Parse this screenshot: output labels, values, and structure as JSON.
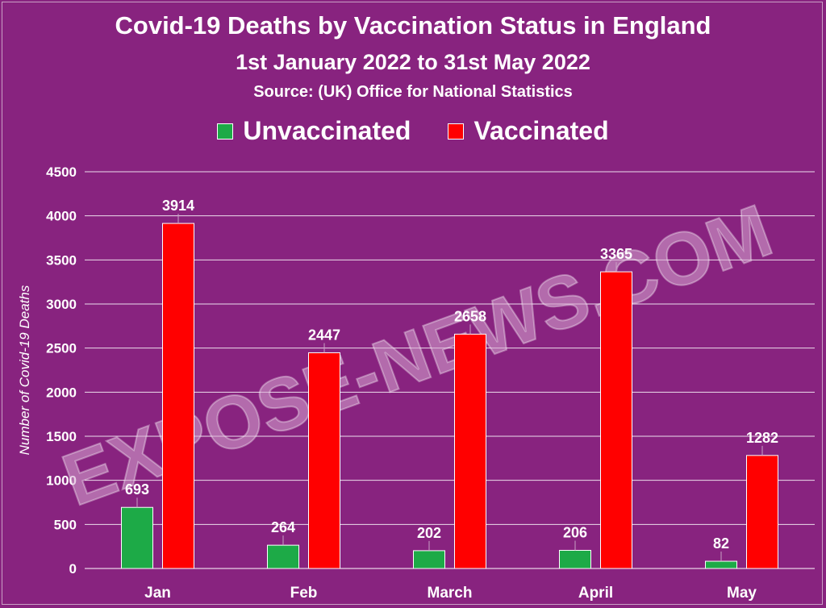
{
  "chart_data": {
    "type": "bar",
    "title": "Covid-19 Deaths by Vaccination Status in England",
    "subtitle": "1st January 2022 to 31st May 2022",
    "source": "Source:  (UK) Office for National Statistics",
    "categories": [
      "Jan",
      "Feb",
      "March",
      "April",
      "May"
    ],
    "series": [
      {
        "name": "Unvaccinated",
        "color": "#1daa47",
        "values": [
          693,
          264,
          202,
          206,
          82
        ]
      },
      {
        "name": "Vaccinated",
        "color": "#ff0000",
        "values": [
          3914,
          2447,
          2658,
          3365,
          1282
        ]
      }
    ],
    "ylabel": "Number of Covid-19 Deaths",
    "xlabel": "",
    "ylim": [
      0,
      4500
    ],
    "yticks": [
      0,
      500,
      1000,
      1500,
      2000,
      2500,
      3000,
      3500,
      4000,
      4500
    ],
    "grid": true,
    "legend_position": "top",
    "data_labels": true
  },
  "watermark": "EXPOSE-NEWS.COM",
  "colors": {
    "background": "#88237f",
    "text": "#ffffff",
    "grid": "#ffffff"
  }
}
